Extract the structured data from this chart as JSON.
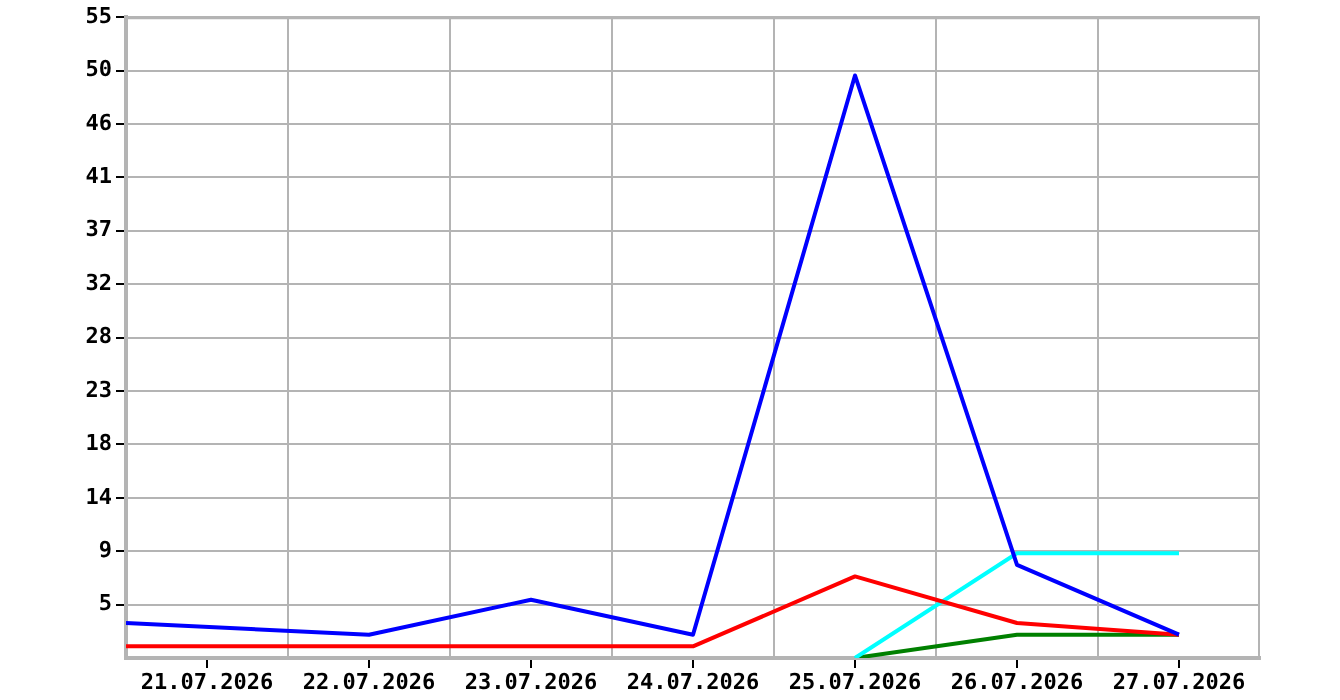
{
  "chart_data": {
    "type": "line",
    "marker": "none",
    "line_style": "solid",
    "grid": true,
    "legend": false,
    "xlim": [
      "2026-07-20T12:00",
      "2026-07-27T12:00"
    ],
    "xticks": [
      {
        "value": "2026-07-21",
        "label": "21.07.2026"
      },
      {
        "value": "2026-07-21T12:00",
        "label": null
      },
      {
        "value": "2026-07-22",
        "label": "22.07.2026"
      },
      {
        "value": "2026-07-22T12:00",
        "label": null
      },
      {
        "value": "2026-07-23",
        "label": "23.07.2026"
      },
      {
        "value": "2026-07-23T12:00",
        "label": null
      },
      {
        "value": "2026-07-24",
        "label": "24.07.2026"
      },
      {
        "value": "2026-07-24T12:00",
        "label": null
      },
      {
        "value": "2026-07-25",
        "label": "25.07.2026"
      },
      {
        "value": "2026-07-25T12:00",
        "label": null
      },
      {
        "value": "2026-07-26",
        "label": "26.07.2026"
      },
      {
        "value": "2026-07-26T12:00",
        "label": null
      },
      {
        "value": "2026-07-27",
        "label": "27.07.2026"
      }
    ],
    "ylim": [
      0,
      55
    ],
    "yticks": [
      {
        "value": 0,
        "label": null
      },
      {
        "value": 4.58,
        "label": "5"
      },
      {
        "value": 9.17,
        "label": "9"
      },
      {
        "value": 13.75,
        "label": "14"
      },
      {
        "value": 18.33,
        "label": "18"
      },
      {
        "value": 22.92,
        "label": "23"
      },
      {
        "value": 27.5,
        "label": "28"
      },
      {
        "value": 32.08,
        "label": "32"
      },
      {
        "value": 36.67,
        "label": "37"
      },
      {
        "value": 41.25,
        "label": "41"
      },
      {
        "value": 45.83,
        "label": "46"
      },
      {
        "value": 50.42,
        "label": "50"
      },
      {
        "value": 55,
        "label": "55"
      }
    ],
    "series": [
      {
        "color": "#0000ff",
        "x": [
          "2026-07-20T12:00",
          "2026-07-22",
          "2026-07-23",
          "2026-07-24",
          "2026-07-25",
          "2026-07-26",
          "2026-07-27"
        ],
        "values": [
          3,
          2,
          5,
          2,
          50,
          8,
          2
        ]
      },
      {
        "color": "#ff0000",
        "x": [
          "2026-07-20T12:00",
          "2026-07-22",
          "2026-07-23",
          "2026-07-24",
          "2026-07-25",
          "2026-07-26",
          "2026-07-27"
        ],
        "values": [
          1,
          1,
          1,
          1,
          7,
          3,
          2
        ]
      },
      {
        "color": "#00ffff",
        "x": [
          "2026-07-25",
          "2026-07-26",
          "2026-07-27"
        ],
        "values": [
          0,
          9,
          9
        ]
      },
      {
        "color": "#008000",
        "x": [
          "2026-07-25",
          "2026-07-26",
          "2026-07-27"
        ],
        "values": [
          0,
          2,
          2
        ]
      }
    ]
  }
}
